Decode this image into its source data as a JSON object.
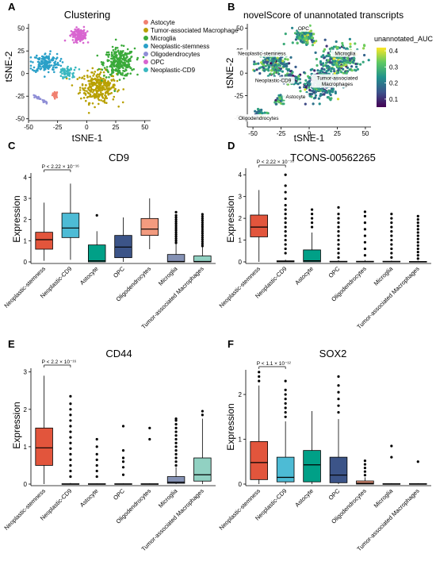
{
  "colors": {
    "astrocyte": "#f08070",
    "tam": "#b8a000",
    "microglia": "#3aaa3a",
    "stemness": "#2aa0c8",
    "oligo": "#8f8ed6",
    "opc": "#d865d0",
    "cd9": "#3ab8c0",
    "box_stemness": "#e2553c",
    "box_cd9": "#4dbbd5",
    "box_astro": "#00a087",
    "box_opc": "#3c5488",
    "box_oligo": "#f39b7f",
    "box_microglia": "#8491b4",
    "box_tam": "#91d1c2"
  },
  "chart_data": [
    {
      "panel": "A",
      "type": "scatter",
      "title": "Clustering",
      "xlabel": "tSNE-1",
      "ylabel": "tSNE-2",
      "xlim": [
        -50,
        55
      ],
      "ylim": [
        -52,
        55
      ],
      "xticks": [
        -50,
        -25,
        0,
        25,
        50
      ],
      "yticks": [
        -50,
        -25,
        0,
        25,
        50
      ],
      "legend": [
        "Astocyte",
        "Tumor-associated Macrophage",
        "Microglia",
        "Neoplastic-stemness",
        "Oligodendrocytes",
        "OPC",
        "Neoplastic-CD9"
      ],
      "legend_position": "right",
      "clusters": [
        {
          "name": "Astocyte",
          "center": [
            -27,
            -23
          ],
          "spread": [
            2,
            3
          ],
          "n": 25
        },
        {
          "name": "Tumor-associated Macrophage",
          "center": [
            10,
            -15
          ],
          "spread": [
            13,
            14
          ],
          "n": 300
        },
        {
          "name": "Microglia",
          "center": [
            28,
            12
          ],
          "spread": [
            11,
            13
          ],
          "n": 280
        },
        {
          "name": "Neoplastic-stemness",
          "center": [
            -35,
            12
          ],
          "spread": [
            10,
            9
          ],
          "n": 160
        },
        {
          "name": "Oligodendrocytes",
          "center": [
            -41,
            -28
          ],
          "spread": [
            4,
            3
          ],
          "n": 25
        },
        {
          "name": "OPC",
          "center": [
            -7,
            43
          ],
          "spread": [
            6,
            6
          ],
          "n": 120
        },
        {
          "name": "Neoplastic-CD9",
          "center": [
            -17,
            1
          ],
          "spread": [
            5,
            5
          ],
          "n": 60
        }
      ]
    },
    {
      "panel": "B",
      "type": "scatter",
      "title": "novelScore of unannotated transcripts",
      "xlabel": "tSNE-1",
      "ylabel": "tSNE-2",
      "xlim": [
        -55,
        55
      ],
      "ylim": [
        -60,
        55
      ],
      "xticks": [
        -50,
        -25,
        0,
        25,
        50
      ],
      "yticks": [
        -50,
        -25,
        0,
        25,
        50
      ],
      "colorbar_title": "unannotated_AUC",
      "colorbar_ticks": [
        0.1,
        0.2,
        0.3,
        0.4
      ],
      "color_range": [
        0.05,
        0.42
      ],
      "labels": [
        "OPC",
        "Neoplastic-stemness",
        "Microglia",
        "Tumor-associated Macrophages",
        "Neoplastic-CD9",
        "Astocyte",
        "Oligodendrocytes"
      ]
    },
    {
      "panel": "C",
      "type": "box",
      "title": "CD9",
      "ylabel": "Expression",
      "ylim": [
        0,
        4.2
      ],
      "yticks": [
        0,
        1,
        2,
        3,
        4
      ],
      "annotation": "P < 2.22 × 10⁻¹⁶",
      "categories": [
        "Neoplastic-stemness",
        "Neoplastic-CD9",
        "Astocyte",
        "OPC",
        "Oligodendrocytes",
        "Microglia",
        "Tumor-associated Macrophages"
      ],
      "boxes": [
        {
          "min": 0.05,
          "q1": 0.6,
          "median": 1.05,
          "q3": 1.4,
          "max": 2.8,
          "outliers": []
        },
        {
          "min": 0.1,
          "q1": 1.15,
          "median": 1.6,
          "q3": 2.3,
          "max": 3.7,
          "outliers": []
        },
        {
          "min": 0,
          "q1": 0,
          "median": 0.05,
          "q3": 0.8,
          "max": 1.45,
          "outliers": [
            2.2
          ]
        },
        {
          "min": 0,
          "q1": 0.2,
          "median": 0.7,
          "q3": 1.25,
          "max": 2.1,
          "outliers": []
        },
        {
          "min": 0.6,
          "q1": 1.25,
          "median": 1.55,
          "q3": 2.05,
          "max": 3.0,
          "outliers": []
        },
        {
          "min": 0,
          "q1": 0,
          "median": 0.02,
          "q3": 0.35,
          "max": 0.85,
          "outliers": [
            0.9,
            1.0,
            1.1,
            1.2,
            1.3,
            1.4,
            1.5,
            1.6,
            1.7,
            1.8,
            1.9,
            2.0,
            2.1,
            2.2,
            2.35
          ]
        },
        {
          "min": 0,
          "q1": 0,
          "median": 0.02,
          "q3": 0.28,
          "max": 0.7,
          "outliers": [
            0.75,
            0.85,
            0.95,
            1.05,
            1.15,
            1.25,
            1.35,
            1.45,
            1.55,
            1.65,
            1.75,
            1.85,
            1.95,
            2.05,
            2.15,
            2.25
          ]
        }
      ]
    },
    {
      "panel": "D",
      "type": "box",
      "title": "TCONS-00562265",
      "ylabel": "Expression",
      "ylim": [
        0,
        4.3
      ],
      "yticks": [
        0,
        1,
        2,
        3,
        4
      ],
      "annotation": "P < 2.22 × 10⁻¹⁶",
      "categories": [
        "Neoplastic-stemness",
        "Neoplastic-CD9",
        "Astocyte",
        "OPC",
        "Oligodendrocytes",
        "Microglia",
        "Tumor-associated Macrophages"
      ],
      "boxes": [
        {
          "min": 0,
          "q1": 1.15,
          "median": 1.6,
          "q3": 2.15,
          "max": 3.3,
          "outliers": []
        },
        {
          "min": 0,
          "q1": 0,
          "median": 0.02,
          "q3": 0.05,
          "max": 0.1,
          "outliers": [
            0.4,
            0.6,
            0.8,
            1.0,
            1.2,
            1.4,
            1.6,
            1.8,
            2.0,
            2.2,
            2.4,
            2.6,
            2.9,
            3.2,
            3.5,
            4.0
          ]
        },
        {
          "min": 0,
          "q1": 0,
          "median": 0.05,
          "q3": 0.55,
          "max": 1.35,
          "outliers": [
            1.6,
            1.8,
            2.0,
            2.2,
            2.4
          ]
        },
        {
          "min": 0,
          "q1": 0,
          "median": 0.01,
          "q3": 0.03,
          "max": 0.08,
          "outliers": [
            0.2,
            0.4,
            0.6,
            0.8,
            1.0,
            1.2,
            1.4,
            1.6,
            1.8,
            2.0,
            2.2,
            2.5
          ]
        },
        {
          "min": 0,
          "q1": 0,
          "median": 0.01,
          "q3": 0.03,
          "max": 0.08,
          "outliers": [
            0.3,
            0.6,
            0.9,
            1.2,
            1.5,
            1.8,
            2.1,
            2.3
          ]
        },
        {
          "min": 0,
          "q1": 0,
          "median": 0.01,
          "q3": 0.03,
          "max": 0.06,
          "outliers": [
            0.2,
            0.4,
            0.6,
            0.8,
            1.0,
            1.2,
            1.4,
            1.6,
            1.8,
            2.0,
            2.2
          ]
        },
        {
          "min": 0,
          "q1": 0,
          "median": 0.01,
          "q3": 0.02,
          "max": 0.05,
          "outliers": [
            0.15,
            0.3,
            0.45,
            0.6,
            0.75,
            0.9,
            1.05,
            1.2,
            1.35,
            1.5,
            1.65,
            1.8,
            1.95,
            2.1
          ]
        }
      ]
    },
    {
      "panel": "E",
      "type": "box",
      "title": "CD44",
      "ylabel": "Expression",
      "ylim": [
        0,
        3.1
      ],
      "yticks": [
        0,
        1,
        2,
        3
      ],
      "annotation": "P < 2.2 × 10⁻¹⁶",
      "categories": [
        "Neoplastic-stemness",
        "Neoplastic-CD9",
        "Astocyte",
        "OPC",
        "Oligodendrocytes",
        "Microglia",
        "Tumor-associated Macrophages"
      ],
      "boxes": [
        {
          "min": 0,
          "q1": 0.5,
          "median": 0.97,
          "q3": 1.5,
          "max": 2.9,
          "outliers": []
        },
        {
          "min": 0,
          "q1": 0,
          "median": 0,
          "q3": 0.01,
          "max": 0.03,
          "outliers": [
            0.2,
            0.35,
            0.5,
            0.65,
            0.8,
            0.95,
            1.1,
            1.25,
            1.4,
            1.55,
            1.7,
            1.85,
            2.0,
            2.15,
            2.35
          ]
        },
        {
          "min": 0,
          "q1": 0,
          "median": 0,
          "q3": 0.01,
          "max": 0.02,
          "outliers": [
            0.2,
            0.35,
            0.5,
            0.65,
            0.8,
            1.0,
            1.2
          ]
        },
        {
          "min": 0,
          "q1": 0,
          "median": 0,
          "q3": 0.01,
          "max": 0.02,
          "outliers": [
            0.25,
            0.45,
            0.6,
            0.7,
            0.9,
            1.55
          ]
        },
        {
          "min": 0,
          "q1": 0,
          "median": 0,
          "q3": 0.01,
          "max": 0.02,
          "outliers": [
            1.2,
            1.5
          ]
        },
        {
          "min": 0,
          "q1": 0.02,
          "median": 0.05,
          "q3": 0.2,
          "max": 0.45,
          "outliers": [
            0.5,
            0.6,
            0.7,
            0.8,
            0.9,
            1.0,
            1.1,
            1.2,
            1.3,
            1.4,
            1.5,
            1.6,
            1.7,
            1.75
          ]
        },
        {
          "min": 0,
          "q1": 0.08,
          "median": 0.25,
          "q3": 0.7,
          "max": 1.75,
          "outliers": [
            1.85,
            1.95
          ]
        }
      ]
    },
    {
      "panel": "F",
      "type": "box",
      "title": "SOX2",
      "ylabel": "Expression",
      "ylim": [
        0,
        2.55
      ],
      "yticks": [
        0,
        1,
        2
      ],
      "annotation": "P < 1.1 × 10⁻¹²",
      "categories": [
        "Neoplastic-stemness",
        "Neoplastic-CD9",
        "Astocyte",
        "OPC",
        "Oligodendrocytes",
        "Microglia",
        "Tumor-associated Macrophages"
      ],
      "boxes": [
        {
          "min": 0,
          "q1": 0.1,
          "median": 0.48,
          "q3": 0.95,
          "max": 2.2,
          "outliers": [
            2.3,
            2.4,
            2.5
          ]
        },
        {
          "min": 0,
          "q1": 0.05,
          "median": 0.15,
          "q3": 0.6,
          "max": 1.4,
          "outliers": [
            1.5,
            1.6,
            1.7,
            1.8,
            1.9,
            2.0,
            2.1,
            2.3
          ]
        },
        {
          "min": 0,
          "q1": 0.05,
          "median": 0.43,
          "q3": 0.75,
          "max": 1.63,
          "outliers": []
        },
        {
          "min": 0,
          "q1": 0.03,
          "median": 0.2,
          "q3": 0.6,
          "max": 1.45,
          "outliers": [
            1.6,
            1.75,
            1.9,
            2.05,
            2.2,
            2.4
          ]
        },
        {
          "min": 0,
          "q1": 0,
          "median": 0.02,
          "q3": 0.07,
          "max": 0.15,
          "outliers": [
            0.2,
            0.28,
            0.36,
            0.44,
            0.52
          ]
        },
        {
          "min": 0,
          "q1": 0,
          "median": 0,
          "q3": 0.01,
          "max": 0.02,
          "outliers": [
            0.6,
            0.85
          ]
        },
        {
          "min": 0,
          "q1": 0,
          "median": 0,
          "q3": 0.01,
          "max": 0.02,
          "outliers": [
            0.5
          ]
        }
      ]
    }
  ]
}
